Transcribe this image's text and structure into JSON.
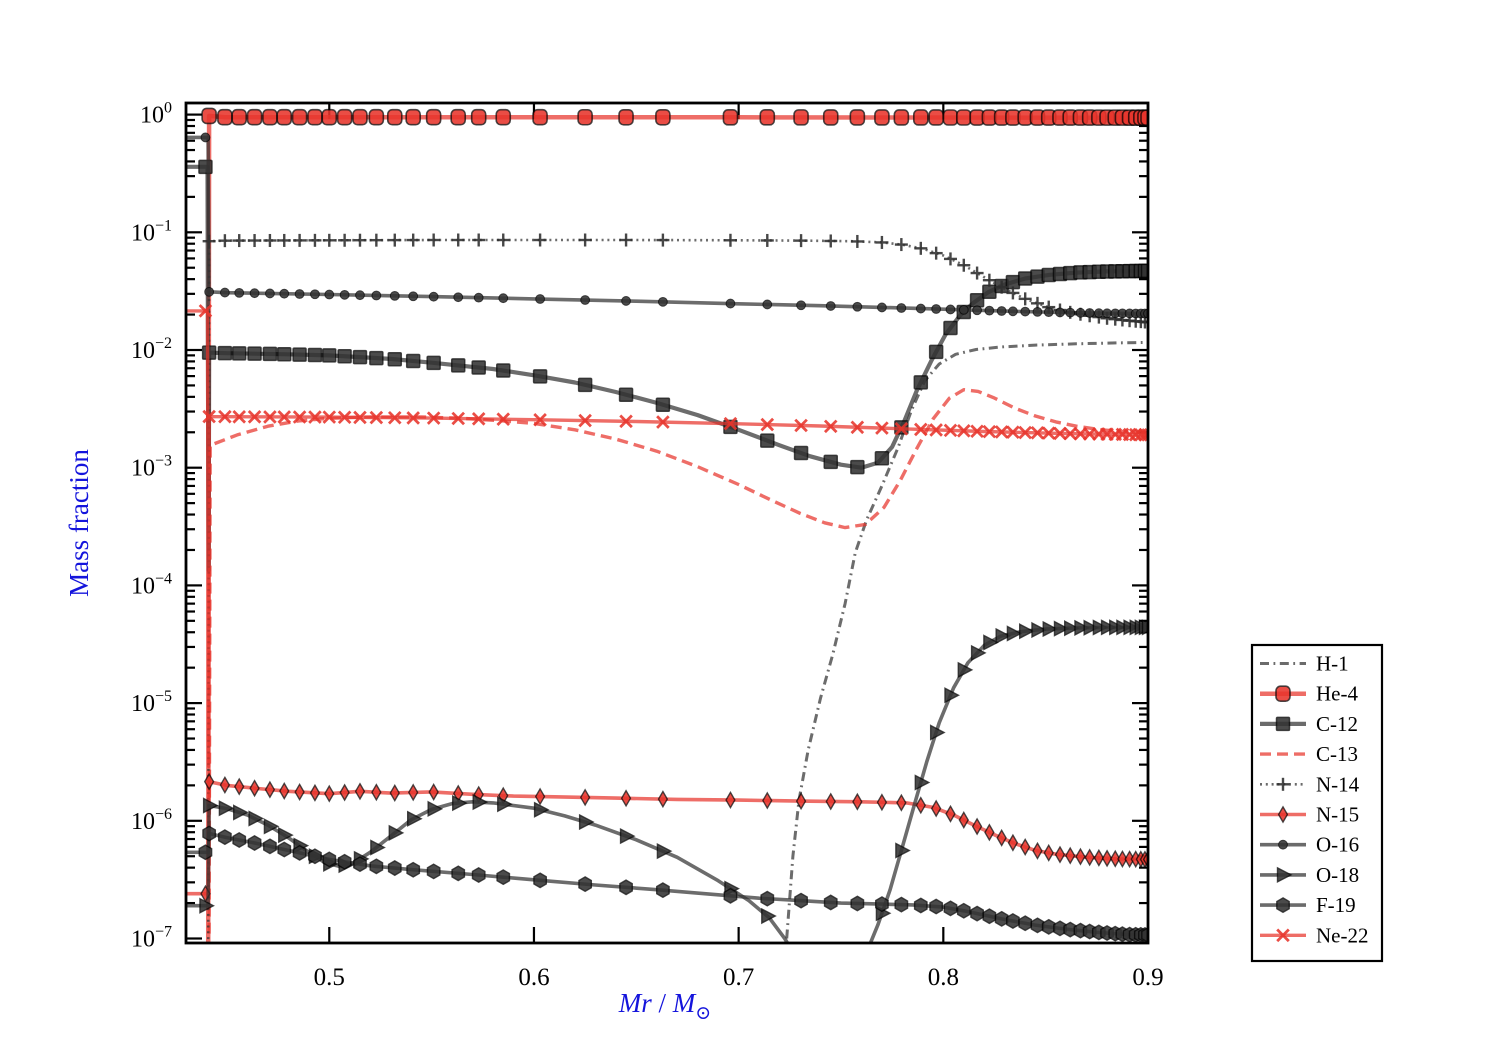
{
  "page": {
    "background": "#ffffff"
  },
  "chart_data": {
    "type": "line",
    "title": "",
    "xlabel": "Mr / M⊙",
    "xlabel_rich": [
      {
        "t": "Mr",
        "italic": true
      },
      {
        "t": " / ",
        "italic": false
      },
      {
        "t": "M",
        "italic": true
      },
      {
        "t": "⊙",
        "sub": true
      }
    ],
    "ylabel": "Mass fraction",
    "x_ticks": [
      0.5,
      0.6,
      0.7,
      0.8,
      0.9
    ],
    "x_tick_labels": [
      "0.5",
      "0.6",
      "0.7",
      "0.8",
      "0.9"
    ],
    "y_tick_exponents": [
      0,
      -1,
      -2,
      -3,
      -4,
      -5,
      -6,
      -7
    ],
    "x_range": [
      0.43,
      0.9
    ],
    "y_range_log": [
      -7.04,
      0.09
    ],
    "y_scale": "log",
    "grid": false,
    "legend_position": "right-outside",
    "axis_label_color": "#1414dc",
    "colors": {
      "red": "#e8352c",
      "dark": "#333333"
    },
    "marker_x": [
      0.4395,
      0.4413,
      0.449,
      0.456,
      0.4635,
      0.471,
      0.478,
      0.4855,
      0.493,
      0.5,
      0.5075,
      0.515,
      0.523,
      0.532,
      0.541,
      0.551,
      0.563,
      0.573,
      0.585,
      0.603,
      0.625,
      0.645,
      0.663,
      0.696,
      0.714,
      0.7305,
      0.745,
      0.758,
      0.77,
      0.7795,
      0.789,
      0.7965,
      0.8035,
      0.81,
      0.8165,
      0.8225,
      0.8285,
      0.834,
      0.84,
      0.846,
      0.8515,
      0.857,
      0.862,
      0.867,
      0.8715,
      0.876,
      0.88,
      0.884,
      0.8875,
      0.891,
      0.894,
      0.8965,
      0.8985,
      0.9
    ],
    "series": [
      {
        "name": "H-1",
        "color": "dark",
        "line": "dashdot",
        "lw": 3.0,
        "marker": null,
        "points": [
          [
            0.7235,
            1e-07
          ],
          [
            0.7265,
            5e-07
          ],
          [
            0.7295,
            1.5e-06
          ],
          [
            0.734,
            4e-06
          ],
          [
            0.74,
            1.1e-05
          ],
          [
            0.746,
            2.6e-05
          ],
          [
            0.752,
            7e-05
          ],
          [
            0.757,
            0.00019
          ],
          [
            0.7625,
            0.00036
          ],
          [
            0.77,
            0.0007
          ],
          [
            0.778,
            0.0015
          ],
          [
            0.7845,
            0.0031
          ],
          [
            0.791,
            0.0055
          ],
          [
            0.798,
            0.0076
          ],
          [
            0.806,
            0.0092
          ],
          [
            0.816,
            0.0101
          ],
          [
            0.828,
            0.0106
          ],
          [
            0.845,
            0.011
          ],
          [
            0.865,
            0.0113
          ],
          [
            0.885,
            0.0115
          ],
          [
            0.9,
            0.0116
          ]
        ]
      },
      {
        "name": "He-4",
        "color": "red",
        "line": "solid",
        "lw": 4.5,
        "marker": "rounded-square",
        "points": [
          [
            0.43,
            1e-08
          ],
          [
            0.4408,
            1e-08
          ],
          [
            0.4413,
            0.975
          ],
          [
            0.449,
            0.95
          ],
          [
            0.5,
            0.95
          ],
          [
            0.6,
            0.95
          ],
          [
            0.7,
            0.948
          ],
          [
            0.8,
            0.945
          ],
          [
            0.9,
            0.942
          ]
        ]
      },
      {
        "name": "C-12",
        "color": "dark",
        "line": "solid",
        "lw": 4.2,
        "marker": "square",
        "points": [
          [
            0.43,
            0.36
          ],
          [
            0.4405,
            0.36
          ],
          [
            0.4409,
            0.00074
          ],
          [
            0.4411,
            0.000135
          ],
          [
            0.4413,
            0.0095
          ],
          [
            0.45,
            0.0094
          ],
          [
            0.48,
            0.0092
          ],
          [
            0.5,
            0.009
          ],
          [
            0.53,
            0.0084
          ],
          [
            0.55,
            0.0078
          ],
          [
            0.58,
            0.0069
          ],
          [
            0.6,
            0.0061
          ],
          [
            0.62,
            0.0053
          ],
          [
            0.64,
            0.0044
          ],
          [
            0.66,
            0.00355
          ],
          [
            0.68,
            0.0028
          ],
          [
            0.7,
            0.0021
          ],
          [
            0.72,
            0.00155
          ],
          [
            0.735,
            0.00125
          ],
          [
            0.75,
            0.00106
          ],
          [
            0.76,
            0.001
          ],
          [
            0.768,
            0.0011
          ],
          [
            0.775,
            0.0015
          ],
          [
            0.781,
            0.0025
          ],
          [
            0.787,
            0.0045
          ],
          [
            0.794,
            0.008
          ],
          [
            0.801,
            0.0135
          ],
          [
            0.808,
            0.0195
          ],
          [
            0.8145,
            0.025
          ],
          [
            0.822,
            0.031
          ],
          [
            0.83,
            0.036
          ],
          [
            0.84,
            0.0405
          ],
          [
            0.852,
            0.0435
          ],
          [
            0.865,
            0.0455
          ],
          [
            0.88,
            0.0465
          ],
          [
            0.9,
            0.047
          ]
        ]
      },
      {
        "name": "C-13",
        "color": "red",
        "line": "dashed",
        "lw": 3.4,
        "marker": null,
        "points": [
          [
            0.4413,
            1.1e-07
          ],
          [
            0.4418,
            0.00155
          ],
          [
            0.455,
            0.0019
          ],
          [
            0.47,
            0.00225
          ],
          [
            0.485,
            0.0025
          ],
          [
            0.5,
            0.00263
          ],
          [
            0.52,
            0.0027
          ],
          [
            0.545,
            0.0027
          ],
          [
            0.565,
            0.00263
          ],
          [
            0.585,
            0.0025
          ],
          [
            0.6,
            0.00238
          ],
          [
            0.62,
            0.0021
          ],
          [
            0.64,
            0.00175
          ],
          [
            0.66,
            0.00138
          ],
          [
            0.68,
            0.00102
          ],
          [
            0.7,
            0.00072
          ],
          [
            0.715,
            0.00054
          ],
          [
            0.73,
            0.00041
          ],
          [
            0.742,
            0.00034
          ],
          [
            0.752,
            0.00031
          ],
          [
            0.762,
            0.00033
          ],
          [
            0.771,
            0.00046
          ],
          [
            0.779,
            0.00078
          ],
          [
            0.787,
            0.00145
          ],
          [
            0.795,
            0.0026
          ],
          [
            0.803,
            0.0039
          ],
          [
            0.81,
            0.0046
          ],
          [
            0.817,
            0.00445
          ],
          [
            0.825,
            0.0039
          ],
          [
            0.835,
            0.0032
          ],
          [
            0.845,
            0.00275
          ],
          [
            0.855,
            0.00245
          ],
          [
            0.865,
            0.00225
          ],
          [
            0.877,
            0.0021
          ],
          [
            0.89,
            0.00202
          ],
          [
            0.9,
            0.002
          ]
        ]
      },
      {
        "name": "N-14",
        "color": "dark",
        "line": "dotted",
        "lw": 2.6,
        "marker": "plus",
        "points": [
          [
            0.43,
            1e-08
          ],
          [
            0.4408,
            1e-08
          ],
          [
            0.4413,
            0.084
          ],
          [
            0.45,
            0.085
          ],
          [
            0.5,
            0.0855
          ],
          [
            0.55,
            0.086
          ],
          [
            0.6,
            0.086
          ],
          [
            0.65,
            0.086
          ],
          [
            0.7,
            0.0855
          ],
          [
            0.73,
            0.085
          ],
          [
            0.755,
            0.084
          ],
          [
            0.77,
            0.082
          ],
          [
            0.78,
            0.0785
          ],
          [
            0.79,
            0.0725
          ],
          [
            0.8,
            0.0635
          ],
          [
            0.81,
            0.0525
          ],
          [
            0.82,
            0.0415
          ],
          [
            0.83,
            0.033
          ],
          [
            0.84,
            0.0272
          ],
          [
            0.85,
            0.0235
          ],
          [
            0.86,
            0.0212
          ],
          [
            0.87,
            0.0197
          ],
          [
            0.88,
            0.0186
          ],
          [
            0.89,
            0.0178
          ],
          [
            0.9,
            0.0172
          ]
        ]
      },
      {
        "name": "N-15",
        "color": "red",
        "line": "solid",
        "lw": 3.6,
        "marker": "thin-diamond",
        "points": [
          [
            0.43,
            2.4e-07
          ],
          [
            0.4408,
            2.4e-07
          ],
          [
            0.4413,
            2.15e-06
          ],
          [
            0.45,
            2e-06
          ],
          [
            0.465,
            1.88e-06
          ],
          [
            0.48,
            1.78e-06
          ],
          [
            0.5,
            1.7e-06
          ],
          [
            0.515,
            1.78e-06
          ],
          [
            0.53,
            1.72e-06
          ],
          [
            0.55,
            1.76e-06
          ],
          [
            0.57,
            1.68e-06
          ],
          [
            0.59,
            1.62e-06
          ],
          [
            0.61,
            1.6e-06
          ],
          [
            0.64,
            1.56e-06
          ],
          [
            0.67,
            1.52e-06
          ],
          [
            0.7,
            1.5e-06
          ],
          [
            0.73,
            1.47e-06
          ],
          [
            0.76,
            1.45e-06
          ],
          [
            0.782,
            1.42e-06
          ],
          [
            0.795,
            1.3e-06
          ],
          [
            0.805,
            1.12e-06
          ],
          [
            0.815,
            9.2e-07
          ],
          [
            0.825,
            7.6e-07
          ],
          [
            0.835,
            6.4e-07
          ],
          [
            0.845,
            5.6e-07
          ],
          [
            0.855,
            5.2e-07
          ],
          [
            0.87,
            4.9e-07
          ],
          [
            0.885,
            4.75e-07
          ],
          [
            0.9,
            4.7e-07
          ]
        ]
      },
      {
        "name": "O-16",
        "color": "dark",
        "line": "solid",
        "lw": 3.6,
        "marker": "dot",
        "points": [
          [
            0.43,
            0.64
          ],
          [
            0.4408,
            0.64
          ],
          [
            0.4413,
            0.0312
          ],
          [
            0.45,
            0.0307
          ],
          [
            0.5,
            0.0296
          ],
          [
            0.55,
            0.0284
          ],
          [
            0.6,
            0.0272
          ],
          [
            0.65,
            0.026
          ],
          [
            0.7,
            0.0247
          ],
          [
            0.74,
            0.0238
          ],
          [
            0.77,
            0.023
          ],
          [
            0.8,
            0.0222
          ],
          [
            0.83,
            0.0214
          ],
          [
            0.86,
            0.0208
          ],
          [
            0.88,
            0.0205
          ],
          [
            0.9,
            0.0204
          ]
        ]
      },
      {
        "name": "O-18",
        "color": "dark",
        "line": "solid",
        "lw": 3.6,
        "marker": "triangle-right",
        "points": [
          [
            0.43,
            1.9e-07
          ],
          [
            0.4408,
            1.9e-07
          ],
          [
            0.4413,
            1.35e-06
          ],
          [
            0.45,
            1.27e-06
          ],
          [
            0.46,
            1.12e-06
          ],
          [
            0.47,
            9.2e-07
          ],
          [
            0.48,
            7.2e-07
          ],
          [
            0.49,
            5.4e-07
          ],
          [
            0.498,
            4.4e-07
          ],
          [
            0.505,
            4.1e-07
          ],
          [
            0.512,
            4.4e-07
          ],
          [
            0.52,
            5.4e-07
          ],
          [
            0.53,
            7.4e-07
          ],
          [
            0.54,
            1.02e-06
          ],
          [
            0.55,
            1.25e-06
          ],
          [
            0.56,
            1.4e-06
          ],
          [
            0.57,
            1.45e-06
          ],
          [
            0.58,
            1.42e-06
          ],
          [
            0.6,
            1.28e-06
          ],
          [
            0.615,
            1.1e-06
          ],
          [
            0.63,
            9.2e-07
          ],
          [
            0.65,
            6.9e-07
          ],
          [
            0.67,
            4.9e-07
          ],
          [
            0.69,
            3.1e-07
          ],
          [
            0.705,
            2.1e-07
          ],
          [
            0.715,
            1.5e-07
          ],
          [
            0.7225,
            1e-07
          ],
          [
            0.728,
            7e-08
          ],
          [
            0.74,
            4.5e-08
          ],
          [
            0.755,
            5e-08
          ],
          [
            0.763,
            8e-08
          ],
          [
            0.768,
            1.3e-07
          ],
          [
            0.774,
            2.6e-07
          ],
          [
            0.78,
            6e-07
          ],
          [
            0.786,
            1.4e-06
          ],
          [
            0.792,
            3.2e-06
          ],
          [
            0.798,
            6.8e-06
          ],
          [
            0.805,
            1.35e-05
          ],
          [
            0.812,
            2.2e-05
          ],
          [
            0.82,
            3.1e-05
          ],
          [
            0.828,
            3.7e-05
          ],
          [
            0.838,
            4.05e-05
          ],
          [
            0.85,
            4.25e-05
          ],
          [
            0.865,
            4.35e-05
          ],
          [
            0.88,
            4.4e-05
          ],
          [
            0.9,
            4.4e-05
          ]
        ]
      },
      {
        "name": "F-19",
        "color": "dark",
        "line": "solid",
        "lw": 3.6,
        "marker": "hexagon",
        "points": [
          [
            0.43,
            5.4e-07
          ],
          [
            0.4408,
            5.4e-07
          ],
          [
            0.4413,
            7.8e-07
          ],
          [
            0.45,
            7.2e-07
          ],
          [
            0.465,
            6.4e-07
          ],
          [
            0.48,
            5.6e-07
          ],
          [
            0.5,
            4.7e-07
          ],
          [
            0.52,
            4.15e-07
          ],
          [
            0.54,
            3.85e-07
          ],
          [
            0.57,
            3.5e-07
          ],
          [
            0.6,
            3.15e-07
          ],
          [
            0.63,
            2.85e-07
          ],
          [
            0.66,
            2.6e-07
          ],
          [
            0.69,
            2.35e-07
          ],
          [
            0.71,
            2.2e-07
          ],
          [
            0.73,
            2.1e-07
          ],
          [
            0.75,
            2e-07
          ],
          [
            0.77,
            1.96e-07
          ],
          [
            0.785,
            1.93e-07
          ],
          [
            0.8,
            1.85e-07
          ],
          [
            0.81,
            1.72e-07
          ],
          [
            0.82,
            1.58e-07
          ],
          [
            0.83,
            1.45e-07
          ],
          [
            0.845,
            1.3e-07
          ],
          [
            0.86,
            1.2e-07
          ],
          [
            0.875,
            1.13e-07
          ],
          [
            0.89,
            1.08e-07
          ],
          [
            0.9,
            1.07e-07
          ]
        ]
      },
      {
        "name": "Ne-22",
        "color": "red",
        "line": "solid",
        "lw": 3.4,
        "marker": "x",
        "points": [
          [
            0.43,
            0.0215
          ],
          [
            0.4405,
            0.0215
          ],
          [
            0.4409,
            4.8e-06
          ],
          [
            0.4411,
            2.9e-06
          ],
          [
            0.4413,
            0.00272
          ],
          [
            0.45,
            0.00271
          ],
          [
            0.5,
            0.00269
          ],
          [
            0.55,
            0.00264
          ],
          [
            0.6,
            0.00256
          ],
          [
            0.65,
            0.00247
          ],
          [
            0.7,
            0.00236
          ],
          [
            0.74,
            0.00226
          ],
          [
            0.78,
            0.00214
          ],
          [
            0.82,
            0.00203
          ],
          [
            0.86,
            0.00195
          ],
          [
            0.9,
            0.0019
          ]
        ]
      }
    ]
  }
}
